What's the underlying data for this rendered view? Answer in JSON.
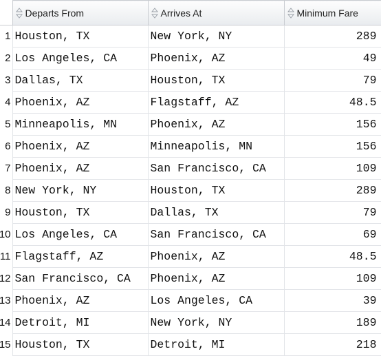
{
  "table": {
    "columns": [
      "Departs From",
      "Arrives At",
      "Minimum Fare"
    ],
    "rows": [
      [
        "1",
        "Houston, TX",
        "New York, NY",
        289
      ],
      [
        "2",
        "Los Angeles, CA",
        "Phoenix, AZ",
        49
      ],
      [
        "3",
        "Dallas, TX",
        "Houston, TX",
        79
      ],
      [
        "4",
        "Phoenix, AZ",
        "Flagstaff, AZ",
        48.5
      ],
      [
        "5",
        "Minneapolis, MN",
        "Phoenix, AZ",
        156
      ],
      [
        "6",
        "Phoenix, AZ",
        "Minneapolis, MN",
        156
      ],
      [
        "7",
        "Phoenix, AZ",
        "San Francisco, CA",
        109
      ],
      [
        "8",
        "New York, NY",
        "Houston, TX",
        289
      ],
      [
        "9",
        "Houston, TX",
        "Dallas, TX",
        79
      ],
      [
        "10",
        "Los Angeles, CA",
        "San Francisco, CA",
        69
      ],
      [
        "11",
        "Flagstaff, AZ",
        "Phoenix, AZ",
        48.5
      ],
      [
        "12",
        "San Francisco, CA",
        "Phoenix, AZ",
        109
      ],
      [
        "13",
        "Phoenix, AZ",
        "Los Angeles, CA",
        39
      ],
      [
        "14",
        "Detroit, MI",
        "New York, NY",
        189
      ],
      [
        "15",
        "Houston, TX",
        "Detroit, MI",
        218
      ]
    ]
  }
}
